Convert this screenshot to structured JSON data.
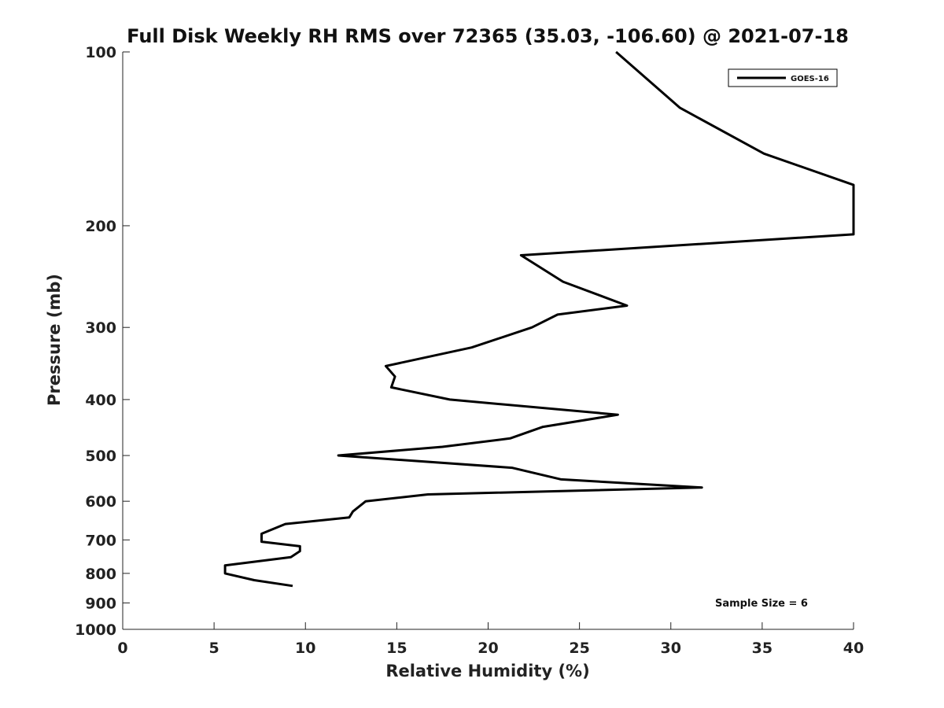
{
  "chart_data": {
    "type": "line",
    "title": "Full Disk Weekly RH RMS over 72365 (35.03, -106.60) @ 2021-07-18",
    "xlabel": "Relative Humidity (%)",
    "ylabel": "Pressure (mb)",
    "xlim": [
      0,
      40
    ],
    "ylim": [
      1000,
      100
    ],
    "yscale": "log",
    "y_reversed": true,
    "grid": false,
    "legend_position": "top-right",
    "xticks": [
      0,
      5,
      10,
      15,
      20,
      25,
      30,
      35,
      40
    ],
    "xtick_labels": [
      "0",
      "5",
      "10",
      "15",
      "20",
      "25",
      "30",
      "35",
      "40"
    ],
    "yticks": [
      100,
      200,
      300,
      400,
      500,
      600,
      700,
      800,
      900,
      1000
    ],
    "ytick_labels": [
      "100",
      "200",
      "300",
      "400",
      "500",
      "600",
      "700",
      "800",
      "900",
      "1000"
    ],
    "annotation": "Sample Size = 6",
    "series": [
      {
        "name": "GOES-16",
        "color": "#000000",
        "points": [
          [
            27.0,
            100
          ],
          [
            30.5,
            125
          ],
          [
            35.1,
            150
          ],
          [
            40.0,
            170
          ],
          [
            40.0,
            207
          ],
          [
            21.8,
            225
          ],
          [
            24.1,
            250
          ],
          [
            27.6,
            275
          ],
          [
            23.8,
            285
          ],
          [
            22.4,
            300
          ],
          [
            19.1,
            325
          ],
          [
            14.4,
            350
          ],
          [
            14.9,
            365
          ],
          [
            14.7,
            381
          ],
          [
            17.9,
            400
          ],
          [
            27.1,
            425
          ],
          [
            23.0,
            446
          ],
          [
            21.2,
            467
          ],
          [
            17.5,
            483
          ],
          [
            11.8,
            500
          ],
          [
            21.3,
            525
          ],
          [
            24.0,
            550
          ],
          [
            31.7,
            568
          ],
          [
            16.7,
            584
          ],
          [
            13.3,
            600
          ],
          [
            12.6,
            625
          ],
          [
            12.4,
            640
          ],
          [
            8.9,
            657
          ],
          [
            7.6,
            683
          ],
          [
            7.6,
            705
          ],
          [
            9.7,
            718
          ],
          [
            9.7,
            732
          ],
          [
            9.2,
            750
          ],
          [
            5.6,
            775
          ],
          [
            5.6,
            800
          ],
          [
            7.2,
            822
          ],
          [
            9.3,
            841
          ]
        ]
      }
    ]
  }
}
